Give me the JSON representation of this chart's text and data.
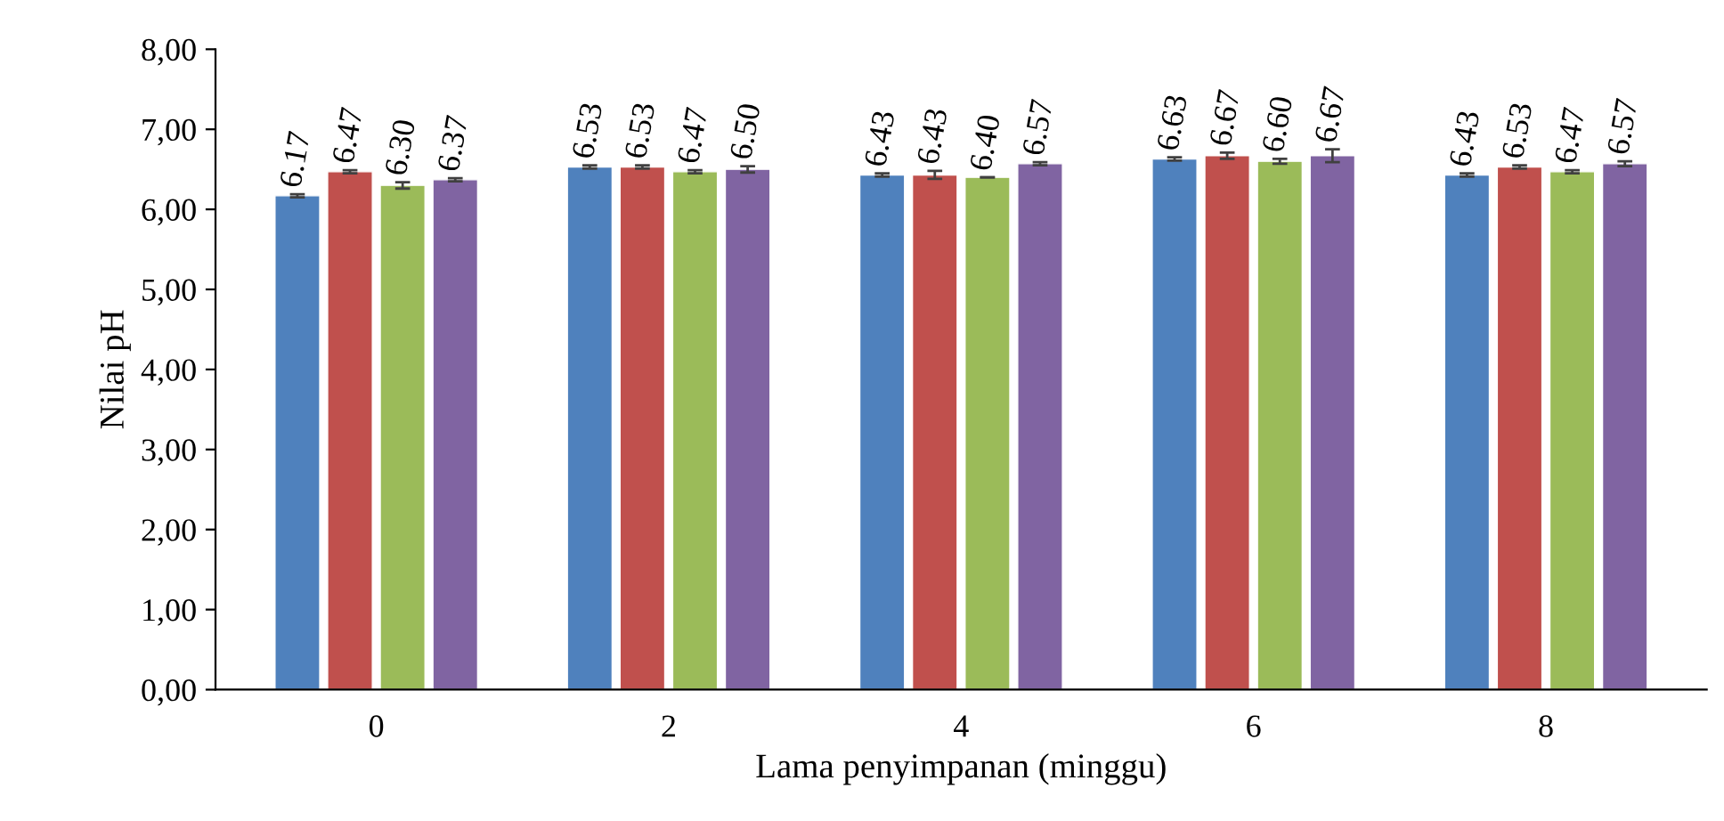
{
  "chart_data": {
    "type": "bar",
    "xlabel": "Lama penyimpanan (minggu)",
    "ylabel": "Nilai pH",
    "categories": [
      "0",
      "2",
      "4",
      "6",
      "8"
    ],
    "series": [
      {
        "color": "#4f81bd",
        "values": [
          6.17,
          6.53,
          6.43,
          6.63,
          6.43
        ],
        "errors": [
          0.02,
          0.02,
          0.02,
          0.02,
          0.02
        ],
        "value_labels": [
          "6.17",
          "6.53",
          "6.43",
          "6.63",
          "6.43"
        ]
      },
      {
        "color": "#c0504d",
        "values": [
          6.47,
          6.53,
          6.43,
          6.67,
          6.53
        ],
        "errors": [
          0.02,
          0.02,
          0.05,
          0.04,
          0.02
        ],
        "value_labels": [
          "6.47",
          "6.53",
          "6.43",
          "6.67",
          "6.53"
        ]
      },
      {
        "color": "#9bbb59",
        "values": [
          6.3,
          6.47,
          6.4,
          6.6,
          6.47
        ],
        "errors": [
          0.04,
          0.02,
          null,
          0.03,
          0.02
        ],
        "value_labels": [
          "6.30",
          "6.47",
          "6.40",
          "6.60",
          "6.47"
        ]
      },
      {
        "color": "#8064a2",
        "values": [
          6.37,
          6.5,
          6.57,
          6.67,
          6.57
        ],
        "errors": [
          0.02,
          0.04,
          0.02,
          0.08,
          0.03
        ],
        "value_labels": [
          "6.37",
          "6.50",
          "6.57",
          "6.67",
          "6.57"
        ]
      }
    ],
    "ylim": [
      0,
      8
    ],
    "yticks": [
      {
        "value": 0,
        "label": "0,00"
      },
      {
        "value": 1,
        "label": "1,00"
      },
      {
        "value": 2,
        "label": "2,00"
      },
      {
        "value": 3,
        "label": "3,00"
      },
      {
        "value": 4,
        "label": "4,00"
      },
      {
        "value": 5,
        "label": "5,00"
      },
      {
        "value": 6,
        "label": "6,00"
      },
      {
        "value": 7,
        "label": "7,00"
      },
      {
        "value": 8,
        "label": "8,00"
      }
    ],
    "grid": false,
    "legend": false
  }
}
